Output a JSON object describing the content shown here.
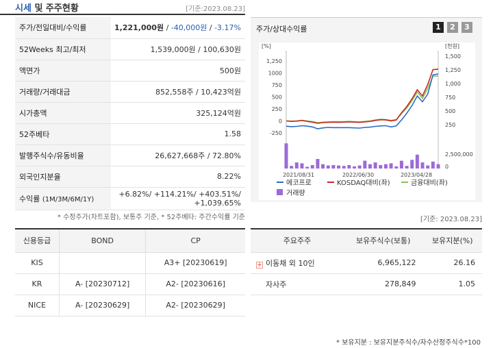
{
  "header": {
    "title_part1": "시세",
    "title_part2": " 및 주주현황",
    "date": "[기준:2023.08.23]"
  },
  "stock_table": {
    "rows": [
      {
        "label": "주가/전일대비/수익률",
        "value_main": "1,221,000원",
        "value_change": "-40,000원",
        "value_rate": "-3.17%"
      },
      {
        "label": "52Weeks 최고/최저",
        "value": "1,539,000원 / 100,630원"
      },
      {
        "label": "액면가",
        "value": "500원"
      },
      {
        "label": "거래량/거래대금",
        "value": "852,558주 / 10,423억원"
      },
      {
        "label": "시가총액",
        "value": "325,124억원"
      },
      {
        "label": "52주베타",
        "value": "1.58"
      },
      {
        "label": "발행주식수/유동비율",
        "value": "26,627,668주 / 72.80%"
      },
      {
        "label": "외국인지분율",
        "value": "8.22%"
      },
      {
        "label": "수익률",
        "label_sub": "(1M/3M/6M/1Y)",
        "value_line1": "+6.82%/ +114.21%/ +403.51%/",
        "value_line2": "+1,039.65%"
      }
    ],
    "note": "* 수정주가(차트포함), 보통주 기준, * 52주베타: 주간수익률 기준"
  },
  "chart_panel": {
    "title": "주가/상대수익률",
    "tabs": [
      "1",
      "2",
      "3"
    ],
    "active_tab": 0
  },
  "chart_data": {
    "type": "line",
    "left_axis_unit": "[%]",
    "right_axis_unit": "[천원]",
    "left_ticks": [
      "1,250",
      "1000",
      "750",
      "500",
      "250",
      "0",
      "-250"
    ],
    "right_ticks": [
      "1,500",
      "1,250",
      "1,000",
      "750",
      "500",
      "250"
    ],
    "volume_ticks": [
      "2,500,000",
      "0"
    ],
    "x_labels": [
      "2021/08/31",
      "2022/06/30",
      "2023/04/28"
    ],
    "ylim_left": [
      -250,
      1250
    ],
    "series": [
      {
        "name": "에코프로",
        "color": "#2b6cc4",
        "values": [
          -110,
          -120,
          -115,
          -100,
          -110,
          -125,
          -165,
          -145,
          -135,
          -140,
          -140,
          -140,
          -140,
          -145,
          -150,
          -135,
          -130,
          -115,
          -105,
          -100,
          -125,
          -105,
          20,
          160,
          320,
          520,
          400,
          560,
          960,
          980
        ]
      },
      {
        "name": "KOSDAQ대비(좌)",
        "color": "#c62828",
        "values": [
          0,
          -10,
          -5,
          10,
          -10,
          -25,
          -50,
          -35,
          -30,
          -25,
          -30,
          -25,
          -20,
          -25,
          -30,
          -20,
          -10,
          10,
          25,
          20,
          0,
          20,
          170,
          300,
          460,
          650,
          520,
          760,
          1070,
          1080
        ]
      },
      {
        "name": "금융대비(좌)",
        "color": "#8bc34a",
        "values": [
          0,
          -5,
          0,
          15,
          0,
          -15,
          -35,
          -25,
          -20,
          -15,
          -15,
          -15,
          -10,
          -15,
          -20,
          -10,
          0,
          20,
          35,
          30,
          10,
          30,
          150,
          270,
          420,
          600,
          470,
          680,
          930,
          940
        ]
      }
    ],
    "volume_series": {
      "name": "거래량",
      "color": "#9c6bd6",
      "values": [
        2900000,
        300000,
        700000,
        600000,
        200000,
        400000,
        1100000,
        500000,
        350000,
        400000,
        350000,
        300000,
        400000,
        250000,
        350000,
        900000,
        500000,
        700000,
        400000,
        500000,
        600000,
        250000,
        900000,
        300000,
        1000000,
        1600000,
        700000,
        350000,
        800000,
        500000
      ]
    },
    "legend": [
      "에코프로",
      "KOSDAQ대비(좌)",
      "금융대비(좌)",
      "거래량"
    ]
  },
  "chart_note": "[기준: 2023.08.23]",
  "credit_table": {
    "headers": [
      "신용등급",
      "BOND",
      "CP"
    ],
    "rows": [
      [
        "KIS",
        "",
        "A3+ [20230619]"
      ],
      [
        "KR",
        "A- [20230712]",
        "A2- [20230616]"
      ],
      [
        "NICE",
        "A- [20230629]",
        "A2- [20230629]"
      ]
    ]
  },
  "holders_table": {
    "headers": [
      "주요주주",
      "보유주식수(보통)",
      "보유지분(%)"
    ],
    "rows": [
      {
        "name": "이동채 외 10인",
        "shares": "6,965,122",
        "pct": "26.16",
        "expand": true
      },
      {
        "name": "자사주",
        "shares": "278,849",
        "pct": "1.05",
        "expand": false
      }
    ],
    "note": "* 보유지분 : 보유지분주식수/자수산정주식수*100"
  }
}
